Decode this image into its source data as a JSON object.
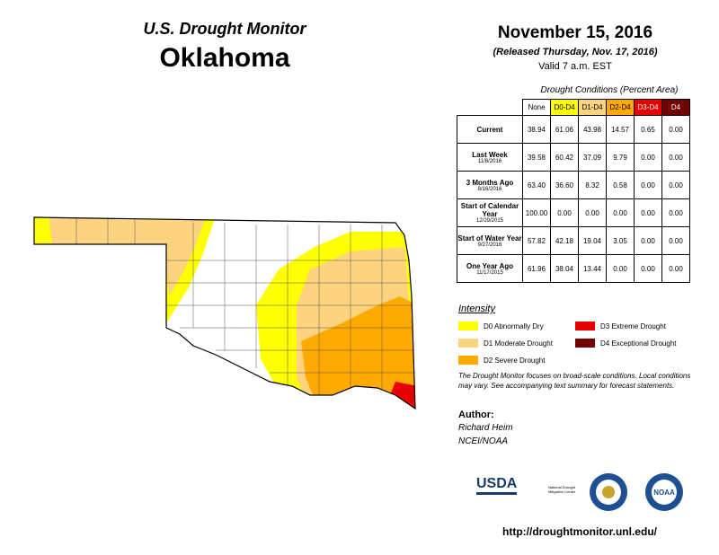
{
  "header": {
    "subtitle": "U.S. Drought Monitor",
    "title": "Oklahoma"
  },
  "date": {
    "title": "November 15, 2016",
    "released": "(Released Thursday, Nov. 17, 2016)",
    "valid": "Valid 7 a.m. EST"
  },
  "table": {
    "caption": "Drought Conditions (Percent Area)",
    "columns": [
      "None",
      "D0-D4",
      "D1-D4",
      "D2-D4",
      "D3-D4",
      "D4"
    ],
    "rows": [
      {
        "label": "Current",
        "values": [
          "38.94",
          "61.06",
          "43.98",
          "14.57",
          "0.65",
          "0.00"
        ]
      },
      {
        "label": "Last Week",
        "date": "11/8/2016",
        "values": [
          "39.58",
          "60.42",
          "37.09",
          "9.79",
          "0.00",
          "0.00"
        ]
      },
      {
        "label": "3 Months Ago",
        "date": "8/16/2016",
        "values": [
          "63.40",
          "36.60",
          "8.32",
          "0.58",
          "0.00",
          "0.00"
        ]
      },
      {
        "label": "Start of Calendar Year",
        "date": "12/29/2015",
        "values": [
          "100.00",
          "0.00",
          "0.00",
          "0.00",
          "0.00",
          "0.00"
        ]
      },
      {
        "label": "Start of Water Year",
        "date": "9/27/2016",
        "values": [
          "57.82",
          "42.18",
          "19.04",
          "3.05",
          "0.00",
          "0.00"
        ]
      },
      {
        "label": "One Year Ago",
        "date": "11/17/2015",
        "values": [
          "61.96",
          "38.04",
          "13.44",
          "0.00",
          "0.00",
          "0.00"
        ]
      }
    ]
  },
  "legend": {
    "title": "Intensity",
    "items": [
      {
        "label": "D0 Abnormally Dry",
        "color": "#ffff00"
      },
      {
        "label": "D1 Moderate Drought",
        "color": "#fcd37f"
      },
      {
        "label": "D2 Severe Drought",
        "color": "#ffaa00"
      },
      {
        "label": "D3 Extreme Drought",
        "color": "#e60000"
      },
      {
        "label": "D4 Exceptional Drought",
        "color": "#730000"
      }
    ]
  },
  "note": "The Drought Monitor focuses on broad-scale conditions. Local conditions may vary. See accompanying text summary for forecast statements.",
  "author": {
    "label": "Author:",
    "name": "Richard Heim",
    "org": "NCEI/NOAA"
  },
  "logos": {
    "usda": "USDA",
    "ndmc": "National Drought Mitigation Center",
    "noaa": "NOAA"
  },
  "url": "http://droughtmonitor.unl.edu/"
}
